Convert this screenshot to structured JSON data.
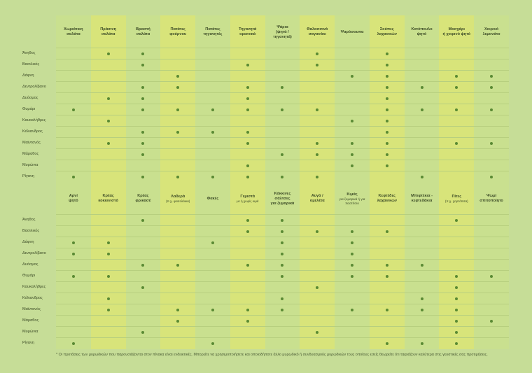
{
  "colors": {
    "background": "#c6dd97",
    "panel": "#c9e08f",
    "highlight_column": "#d8e47a",
    "dot": "#5a8a34"
  },
  "herbs": [
    "Άνηθος",
    "Βασιλικός",
    "Δάφνη",
    "Δεντρολίβανο",
    "Δυόσμος",
    "Θυμάρι",
    "Καυκαλήθρες",
    "Κόλιανδρος",
    "Μαϊντανός",
    "Μάραθος",
    "Μυρώνια",
    "Ρίγανη"
  ],
  "table1": {
    "headers": [
      {
        "l1": "Χωριάτικη",
        "l2": "σαλάτα",
        "sub": ""
      },
      {
        "l1": "Πράσινη",
        "l2": "σαλάτα",
        "sub": ""
      },
      {
        "l1": "Βραστή",
        "l2": "σαλάτα",
        "sub": ""
      },
      {
        "l1": "Πατάτες",
        "l2": "φούρνου",
        "sub": ""
      },
      {
        "l1": "Πατάτες",
        "l2": "τηγανητές",
        "sub": ""
      },
      {
        "l1": "Τηγανητά",
        "l2": "ορεκτικά",
        "sub": ""
      },
      {
        "l1": "Ψάρια",
        "l2": "(ψητά /",
        "l3": "τηγανητά)",
        "sub": ""
      },
      {
        "l1": "Θαλασσινά",
        "l2": "σαγανάκι",
        "sub": ""
      },
      {
        "l1": "Ψαρόσουπα",
        "l2": "",
        "sub": ""
      },
      {
        "l1": "Σούπες",
        "l2": "λαχανικών",
        "sub": ""
      },
      {
        "l1": "Κοτόπουλο",
        "l2": "ψητό",
        "sub": ""
      },
      {
        "l1": "Μοσχάρι",
        "l2": "ή χοιρινό ψητό",
        "sub": ""
      },
      {
        "l1": "Χοιρινό",
        "l2": "λεμονάτο",
        "sub": ""
      }
    ],
    "matrix": [
      [
        0,
        1,
        1,
        0,
        0,
        0,
        0,
        1,
        0,
        1,
        0,
        0,
        0
      ],
      [
        0,
        0,
        1,
        0,
        0,
        1,
        0,
        1,
        0,
        1,
        0,
        0,
        0
      ],
      [
        0,
        0,
        0,
        1,
        0,
        0,
        0,
        0,
        1,
        1,
        0,
        1,
        1
      ],
      [
        0,
        0,
        1,
        1,
        0,
        1,
        1,
        0,
        0,
        1,
        1,
        1,
        1
      ],
      [
        0,
        1,
        1,
        0,
        0,
        1,
        0,
        0,
        0,
        1,
        0,
        0,
        0
      ],
      [
        1,
        0,
        1,
        1,
        1,
        1,
        1,
        1,
        0,
        1,
        1,
        1,
        1
      ],
      [
        0,
        1,
        0,
        0,
        0,
        0,
        0,
        0,
        1,
        1,
        0,
        0,
        0
      ],
      [
        0,
        0,
        1,
        1,
        1,
        1,
        0,
        0,
        0,
        1,
        0,
        0,
        0
      ],
      [
        0,
        1,
        1,
        0,
        0,
        1,
        0,
        1,
        1,
        1,
        0,
        1,
        1
      ],
      [
        0,
        0,
        1,
        0,
        0,
        0,
        1,
        1,
        1,
        1,
        0,
        0,
        0
      ],
      [
        0,
        0,
        0,
        0,
        0,
        1,
        0,
        0,
        1,
        1,
        0,
        0,
        0
      ],
      [
        1,
        0,
        1,
        1,
        1,
        1,
        1,
        1,
        0,
        0,
        1,
        0,
        1
      ]
    ]
  },
  "table2": {
    "headers": [
      {
        "l1": "Αρνί",
        "l2": "ψητό",
        "sub": ""
      },
      {
        "l1": "Κρέας",
        "l2": "κοκκινιστό",
        "sub": ""
      },
      {
        "l1": "Κρέας",
        "l2": "φρικασέ",
        "sub": ""
      },
      {
        "l1": "Λαδερά",
        "l2": "",
        "sub": "(π.χ. φασολάκια)"
      },
      {
        "l1": "Φακές",
        "l2": "",
        "sub": ""
      },
      {
        "l1": "Γεμιστά",
        "l2": "",
        "sub": "με ή χωρίς κιμά"
      },
      {
        "l1": "Κόκκινες",
        "l2": "σάλτσες",
        "l3": "για ζυμαρικά",
        "sub": ""
      },
      {
        "l1": "Αυγά /",
        "l2": "ομελέτα",
        "sub": ""
      },
      {
        "l1": "Κιμάς",
        "l2": "",
        "sub": "για ζυμαρικά ή για παστίτσιο"
      },
      {
        "l1": "Κεφτέδες",
        "l2": "λαχανικών",
        "sub": ""
      },
      {
        "l1": "Μπιφτέκια -",
        "l2": "κεφτεδάκια",
        "sub": ""
      },
      {
        "l1": "Πίτες",
        "l2": "",
        "sub": "(π.χ. χορτόπιτα)"
      },
      {
        "l1": "Ψωμί",
        "l2": "σπιτοποίητο",
        "sub": ""
      }
    ],
    "matrix": [
      [
        0,
        0,
        1,
        0,
        0,
        1,
        1,
        0,
        0,
        0,
        0,
        1,
        0
      ],
      [
        0,
        0,
        0,
        0,
        0,
        1,
        1,
        1,
        1,
        1,
        0,
        0,
        0
      ],
      [
        1,
        1,
        0,
        0,
        1,
        0,
        1,
        0,
        1,
        0,
        0,
        0,
        0
      ],
      [
        1,
        1,
        0,
        0,
        0,
        0,
        1,
        0,
        1,
        0,
        0,
        0,
        0
      ],
      [
        0,
        0,
        1,
        1,
        0,
        1,
        1,
        0,
        1,
        1,
        1,
        0,
        0
      ],
      [
        1,
        1,
        0,
        0,
        0,
        0,
        1,
        0,
        1,
        1,
        0,
        1,
        1
      ],
      [
        0,
        0,
        1,
        0,
        0,
        0,
        0,
        1,
        0,
        0,
        0,
        1,
        0
      ],
      [
        0,
        1,
        0,
        0,
        0,
        0,
        1,
        0,
        0,
        0,
        1,
        1,
        0
      ],
      [
        0,
        1,
        0,
        1,
        1,
        1,
        1,
        0,
        1,
        1,
        1,
        1,
        0
      ],
      [
        0,
        0,
        0,
        1,
        0,
        1,
        0,
        0,
        0,
        0,
        0,
        1,
        1
      ],
      [
        0,
        0,
        1,
        0,
        0,
        0,
        0,
        1,
        0,
        0,
        0,
        1,
        0
      ],
      [
        1,
        0,
        0,
        0,
        1,
        0,
        0,
        0,
        0,
        1,
        1,
        1,
        0
      ]
    ]
  },
  "footnote": "* Οι προτάσεις των μυρωδικών που παρουσιάζονται στον πίνακα είναι ενδεικτικές. Μπορείτε να χρησιμοποιήσετε και οποιοδήποτε άλλο μυρωδικό ή συνδυασμούς μυρωδικών τους οποίους εσείς θεωρείτε ότι ταιριάζουν καλύτερα στις γευστικές σας προτιμήσεις."
}
